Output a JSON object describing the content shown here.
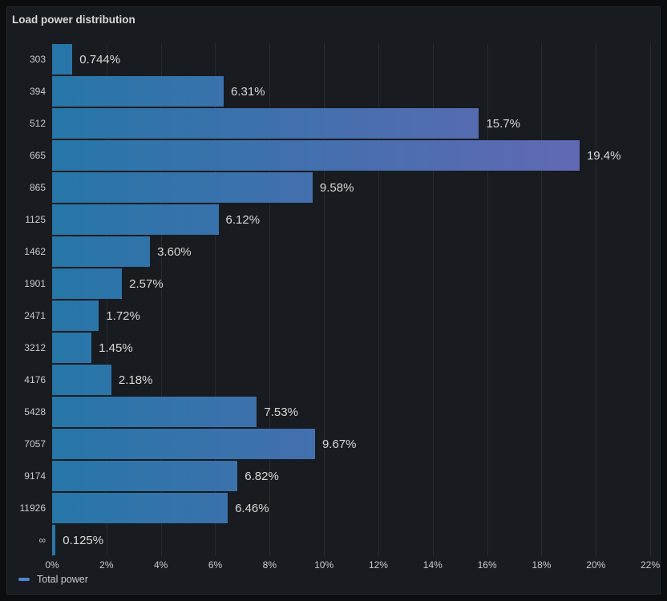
{
  "panel": {
    "title": "Load power distribution"
  },
  "legend": {
    "label": "Total power",
    "marker_color": "#4d86d2"
  },
  "colors": {
    "page_bg": "#0c0d0f",
    "panel_bg": "#181b1f",
    "panel_border": "#26292e",
    "title_text": "#d8d9da",
    "axis_text": "#c9cace",
    "value_text": "#d8d9da",
    "gridline": "rgba(204,204,220,0.09)",
    "bar_gradient_start": "#2676a8",
    "bar_gradient_end": "#6a67b5"
  },
  "chart_data": {
    "type": "bar",
    "orientation": "horizontal",
    "title": "Load power distribution",
    "xlabel": "",
    "ylabel": "",
    "categories": [
      "303",
      "394",
      "512",
      "665",
      "865",
      "1125",
      "1462",
      "1901",
      "2471",
      "3212",
      "4176",
      "5428",
      "7057",
      "9174",
      "11926",
      "∞"
    ],
    "values": [
      0.744,
      6.31,
      15.7,
      19.4,
      9.58,
      6.12,
      3.6,
      2.57,
      1.72,
      1.45,
      2.18,
      7.53,
      9.67,
      6.82,
      6.46,
      0.125
    ],
    "value_labels": [
      "0.744%",
      "6.31%",
      "15.7%",
      "19.4%",
      "9.58%",
      "6.12%",
      "3.60%",
      "2.57%",
      "1.72%",
      "1.45%",
      "2.18%",
      "7.53%",
      "9.67%",
      "6.82%",
      "6.46%",
      "0.125%"
    ],
    "series": [
      {
        "name": "Total power",
        "values": [
          0.744,
          6.31,
          15.7,
          19.4,
          9.58,
          6.12,
          3.6,
          2.57,
          1.72,
          1.45,
          2.18,
          7.53,
          9.67,
          6.82,
          6.46,
          0.125
        ]
      }
    ],
    "xlim": [
      0,
      22.35
    ],
    "x_tick_values": [
      0,
      2,
      4,
      6,
      8,
      10,
      12,
      14,
      16,
      18,
      20,
      22
    ],
    "x_tick_labels": [
      "0%",
      "2%",
      "4%",
      "6%",
      "8%",
      "10%",
      "12%",
      "14%",
      "16%",
      "18%",
      "20%",
      "22%"
    ],
    "grid": true,
    "legend_position": "bottom-left",
    "bar_gradient": {
      "start": "#2676a8",
      "end": "#6a67b5"
    }
  }
}
